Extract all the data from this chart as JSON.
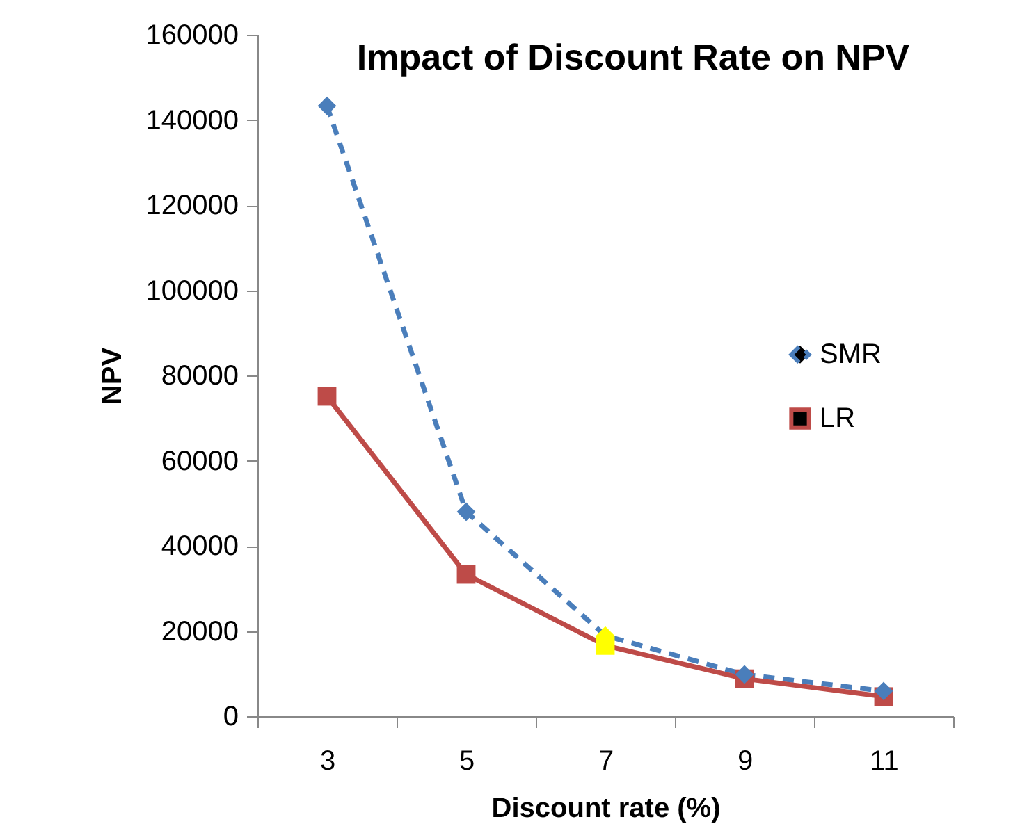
{
  "chart_data": {
    "type": "line",
    "title": "Impact of Discount Rate on NPV",
    "xlabel": "Discount rate (%)",
    "ylabel": "NPV",
    "categories": [
      "3",
      "5",
      "7",
      "9",
      "11"
    ],
    "series": [
      {
        "name": "SMR",
        "color": "#4a7ebb",
        "marker": "diamond",
        "line_style": "dashed",
        "values": [
          143300,
          48000,
          18900,
          9800,
          5900
        ],
        "colors": [
          "#4a7ebb",
          "#4a7ebb",
          "#ffff00",
          "#4a7ebb",
          "#4a7ebb"
        ]
      },
      {
        "name": "LR",
        "color": "#be4b48",
        "marker": "square",
        "line_style": "solid",
        "values": [
          75100,
          33300,
          16600,
          8800,
          4600
        ],
        "colors": [
          "#be4b48",
          "#be4b48",
          "#ffff00",
          "#be4b48",
          "#be4b48"
        ]
      }
    ],
    "ylim": [
      0,
      160000
    ],
    "yticks": [
      0,
      20000,
      40000,
      60000,
      80000,
      100000,
      120000,
      140000,
      160000
    ],
    "grid": false,
    "legend": "right"
  }
}
